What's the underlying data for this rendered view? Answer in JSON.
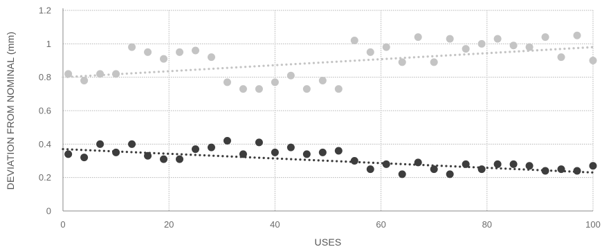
{
  "chart_data": {
    "type": "scatter",
    "xlabel": "USES",
    "ylabel": "DEVIATION FROM NOMINAL (mm)",
    "xlim": [
      0,
      100
    ],
    "ylim": [
      0,
      1.2
    ],
    "x_ticks": [
      "0",
      "20",
      "40",
      "60",
      "80",
      "100"
    ],
    "y_ticks": [
      "0",
      "0.2",
      "0.4",
      "0.6",
      "0.8",
      "1",
      "1.2"
    ],
    "grid": true,
    "series": [
      {
        "color": "#c4c4c4",
        "trendline": {
          "type": "linear",
          "style": "dotted",
          "from": [
            0,
            0.8
          ],
          "to": [
            100,
            0.98
          ]
        },
        "points": [
          [
            1,
            0.82
          ],
          [
            4,
            0.78
          ],
          [
            7,
            0.82
          ],
          [
            10,
            0.82
          ],
          [
            13,
            0.98
          ],
          [
            16,
            0.95
          ],
          [
            19,
            0.91
          ],
          [
            22,
            0.95
          ],
          [
            25,
            0.96
          ],
          [
            28,
            0.92
          ],
          [
            31,
            0.77
          ],
          [
            34,
            0.73
          ],
          [
            37,
            0.73
          ],
          [
            40,
            0.77
          ],
          [
            43,
            0.81
          ],
          [
            46,
            0.73
          ],
          [
            49,
            0.78
          ],
          [
            52,
            0.73
          ],
          [
            55,
            1.02
          ],
          [
            58,
            0.95
          ],
          [
            61,
            0.98
          ],
          [
            64,
            0.89
          ],
          [
            67,
            1.04
          ],
          [
            70,
            0.89
          ],
          [
            73,
            1.03
          ],
          [
            76,
            0.97
          ],
          [
            79,
            1.0
          ],
          [
            82,
            1.03
          ],
          [
            85,
            0.99
          ],
          [
            88,
            0.98
          ],
          [
            91,
            1.04
          ],
          [
            94,
            0.92
          ],
          [
            97,
            1.05
          ],
          [
            100,
            0.9
          ]
        ]
      },
      {
        "color": "#3d3d3d",
        "trendline": {
          "type": "linear",
          "style": "dotted",
          "from": [
            0,
            0.37
          ],
          "to": [
            100,
            0.23
          ]
        },
        "points": [
          [
            1,
            0.34
          ],
          [
            4,
            0.32
          ],
          [
            7,
            0.4
          ],
          [
            10,
            0.35
          ],
          [
            13,
            0.4
          ],
          [
            16,
            0.33
          ],
          [
            19,
            0.31
          ],
          [
            22,
            0.31
          ],
          [
            25,
            0.37
          ],
          [
            28,
            0.38
          ],
          [
            31,
            0.42
          ],
          [
            34,
            0.34
          ],
          [
            37,
            0.41
          ],
          [
            40,
            0.35
          ],
          [
            43,
            0.38
          ],
          [
            46,
            0.34
          ],
          [
            49,
            0.35
          ],
          [
            52,
            0.36
          ],
          [
            55,
            0.3
          ],
          [
            58,
            0.25
          ],
          [
            61,
            0.28
          ],
          [
            64,
            0.22
          ],
          [
            67,
            0.29
          ],
          [
            70,
            0.25
          ],
          [
            73,
            0.22
          ],
          [
            76,
            0.28
          ],
          [
            79,
            0.25
          ],
          [
            82,
            0.28
          ],
          [
            85,
            0.28
          ],
          [
            88,
            0.27
          ],
          [
            91,
            0.24
          ],
          [
            94,
            0.25
          ],
          [
            97,
            0.24
          ],
          [
            100,
            0.27
          ]
        ]
      }
    ]
  }
}
